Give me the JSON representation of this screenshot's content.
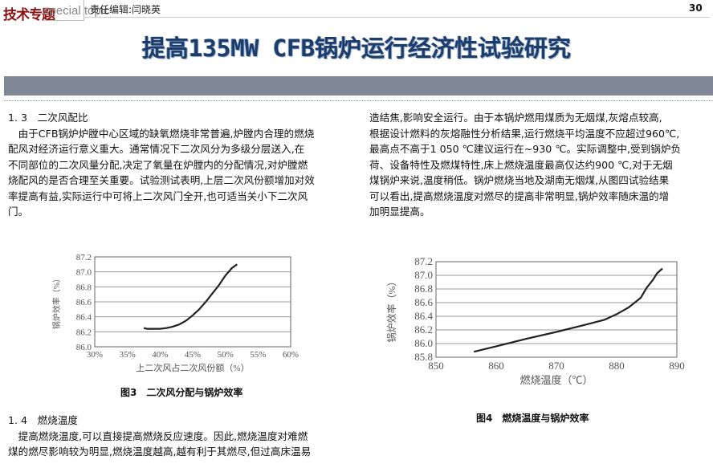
{
  "header": {
    "tag": "技术专题",
    "tag_en": "special topic",
    "editor": "责任编辑:闫晓英",
    "page_number": "30"
  },
  "title": "提高135MW CFB锅炉运行经济性试验研究",
  "left_column": {
    "section_1_3": {
      "heading": "1. 3　二次风配比",
      "lines": [
        "　由于CFB锅炉炉膛中心区域的缺氧燃烧非常普遍,炉膛内合理的燃烧",
        "配风对经济运行意义重大。通常情况下二次风分为多级分层送入,在",
        "不同部位的二次风量分配,决定了氧量在炉膛内的分配情况,对炉膛燃",
        "烧配风的是否合理至关重要。试验测试表明,上层二次风份额增加对效",
        "率提高有益,实际运行中可将上二次风门全开,也可适当关小下二次风",
        "门。"
      ]
    },
    "section_1_4": {
      "heading": "1. 4　燃烧温度",
      "lines": [
        "　提高燃烧温度,可以直接提高燃烧反应速度。因此,燃烧温度对难燃",
        "煤的燃尽影响较为明显,燃烧温度越高,越有利于其燃尽,但过高床温易"
      ]
    }
  },
  "right_column": {
    "lines": [
      "造结焦,影响安全运行。由于本锅炉燃用煤质为无烟煤,灰熔点较高,",
      "根据设计燃料的灰熔融性分析结果,运行燃烧平均温度不应超过960℃,",
      "最高点不高于1 050 ℃建议运行在~930 ℃。实际调整中,受到锅炉负",
      "荷、设备特性及燃煤特性,床上燃烧温度最高仅达约900 ℃,对于无烟",
      "煤锅炉来说,温度稍低。锅炉燃烧当地及湖南无烟煤,从图四试验结果",
      "可以看出,提高燃烧温度对燃尽的提高非常明显,锅炉效率随床温的增",
      "加明显提高。"
    ]
  },
  "chart_data": [
    {
      "type": "line",
      "title": "图3　二次风分配与锅炉效率",
      "xlabel": "上二次风占二次风份额（%）",
      "ylabel": "锅炉效率（%）",
      "xlim": [
        30,
        60
      ],
      "ylim": [
        86.0,
        87.2
      ],
      "xticks": [
        "30%",
        "35%",
        "40%",
        "45%",
        "50%",
        "55%",
        "60%"
      ],
      "yticks": [
        "86.0",
        "86.2",
        "86.4",
        "86.6",
        "86.8",
        "87.0",
        "87.2"
      ],
      "grid": true,
      "x": [
        37.5,
        38,
        40,
        41,
        42,
        43,
        44,
        45,
        46,
        47,
        48,
        49,
        50,
        51,
        51.8
      ],
      "y": [
        86.25,
        86.24,
        86.24,
        86.25,
        86.27,
        86.3,
        86.35,
        86.42,
        86.5,
        86.6,
        86.71,
        86.82,
        86.95,
        87.05,
        87.1
      ]
    },
    {
      "type": "line",
      "title": "图4　燃烧温度与锅炉效率",
      "xlabel": "燃烧温度（℃）",
      "ylabel": "锅炉效率（%）",
      "xlim": [
        850,
        890
      ],
      "ylim": [
        85.8,
        87.2
      ],
      "xticks": [
        "850",
        "860",
        "870",
        "880",
        "890"
      ],
      "yticks": [
        "85.8",
        "86.0",
        "86.2",
        "86.4",
        "86.6",
        "86.8",
        "87.0",
        "87.2"
      ],
      "grid": true,
      "x": [
        856.3,
        860,
        865,
        870,
        875,
        878,
        880,
        882,
        883,
        884,
        885,
        886,
        886.7,
        887.6
      ],
      "y": [
        85.88,
        85.96,
        86.07,
        86.17,
        86.28,
        86.35,
        86.43,
        86.53,
        86.6,
        86.67,
        86.82,
        86.93,
        87.03,
        87.1
      ]
    }
  ]
}
